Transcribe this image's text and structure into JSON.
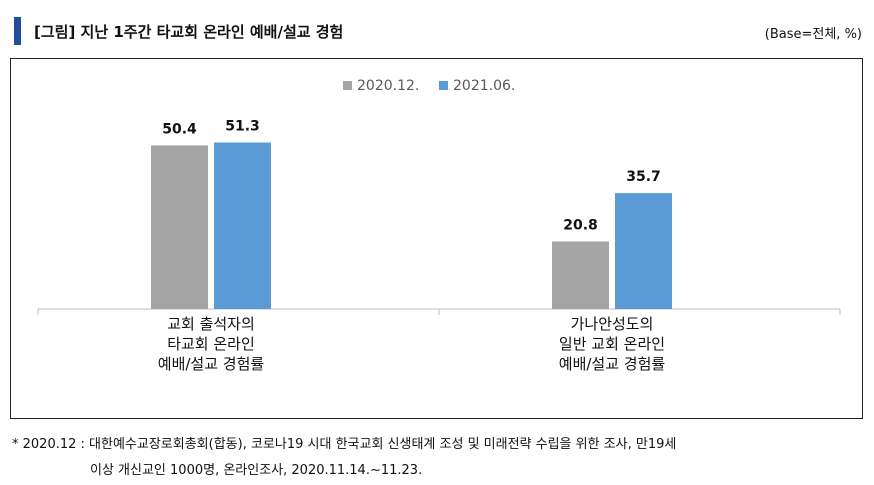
{
  "header": {
    "title": "[그림] 지난 1주간 타교회 온라인 예배/설교 경험",
    "base_note": "(Base=전체, %)"
  },
  "chart_data": {
    "type": "bar",
    "categories": [
      [
        "교회 출석자의",
        "타교회 온라인",
        "예배/설교 경험률"
      ],
      [
        "가나안성도의",
        "일반 교회 온라인",
        "예배/설교 경험률"
      ]
    ],
    "series": [
      {
        "name": "2020.12.",
        "values": [
          50.4,
          20.8
        ],
        "color": "#a5a5a5"
      },
      {
        "name": "2021.06.",
        "values": [
          51.3,
          35.7
        ],
        "color": "#5b9bd5"
      }
    ],
    "ylim": [
      0,
      60
    ],
    "legend_position": "top-center",
    "grid": false,
    "data_labels": true
  },
  "footnote": {
    "line1": "* 2020.12 : 대한예수교장로회총회(합동), 코로나19 시대 한국교회 신생태계 조성 및 미래전략 수립을 위한 조사, 만19세",
    "line2": "이상 개신교인 1000명, 온라인조사, 2020.11.14.~11.23."
  }
}
